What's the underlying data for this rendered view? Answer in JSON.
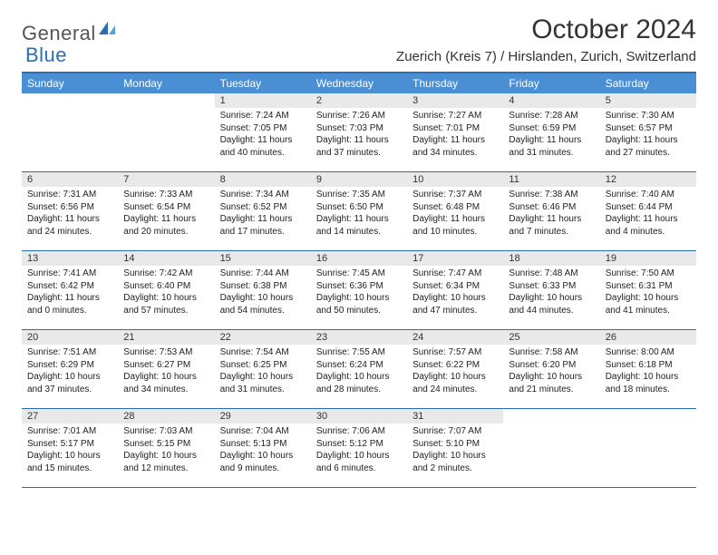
{
  "logo": {
    "text1": "General",
    "text2": "Blue"
  },
  "title": "October 2024",
  "location": "Zuerich (Kreis 7) / Hirslanden, Zurich, Switzerland",
  "colors": {
    "header_bg": "#4a8fd4",
    "border": "#2a6fb5",
    "daynum_bg": "#e9e9e9",
    "text": "#333333"
  },
  "dayNames": [
    "Sunday",
    "Monday",
    "Tuesday",
    "Wednesday",
    "Thursday",
    "Friday",
    "Saturday"
  ],
  "weeks": [
    [
      {
        "n": "",
        "sr": "",
        "ss": "",
        "dl": ""
      },
      {
        "n": "",
        "sr": "",
        "ss": "",
        "dl": ""
      },
      {
        "n": "1",
        "sr": "Sunrise: 7:24 AM",
        "ss": "Sunset: 7:05 PM",
        "dl": "Daylight: 11 hours and 40 minutes."
      },
      {
        "n": "2",
        "sr": "Sunrise: 7:26 AM",
        "ss": "Sunset: 7:03 PM",
        "dl": "Daylight: 11 hours and 37 minutes."
      },
      {
        "n": "3",
        "sr": "Sunrise: 7:27 AM",
        "ss": "Sunset: 7:01 PM",
        "dl": "Daylight: 11 hours and 34 minutes."
      },
      {
        "n": "4",
        "sr": "Sunrise: 7:28 AM",
        "ss": "Sunset: 6:59 PM",
        "dl": "Daylight: 11 hours and 31 minutes."
      },
      {
        "n": "5",
        "sr": "Sunrise: 7:30 AM",
        "ss": "Sunset: 6:57 PM",
        "dl": "Daylight: 11 hours and 27 minutes."
      }
    ],
    [
      {
        "n": "6",
        "sr": "Sunrise: 7:31 AM",
        "ss": "Sunset: 6:56 PM",
        "dl": "Daylight: 11 hours and 24 minutes."
      },
      {
        "n": "7",
        "sr": "Sunrise: 7:33 AM",
        "ss": "Sunset: 6:54 PM",
        "dl": "Daylight: 11 hours and 20 minutes."
      },
      {
        "n": "8",
        "sr": "Sunrise: 7:34 AM",
        "ss": "Sunset: 6:52 PM",
        "dl": "Daylight: 11 hours and 17 minutes."
      },
      {
        "n": "9",
        "sr": "Sunrise: 7:35 AM",
        "ss": "Sunset: 6:50 PM",
        "dl": "Daylight: 11 hours and 14 minutes."
      },
      {
        "n": "10",
        "sr": "Sunrise: 7:37 AM",
        "ss": "Sunset: 6:48 PM",
        "dl": "Daylight: 11 hours and 10 minutes."
      },
      {
        "n": "11",
        "sr": "Sunrise: 7:38 AM",
        "ss": "Sunset: 6:46 PM",
        "dl": "Daylight: 11 hours and 7 minutes."
      },
      {
        "n": "12",
        "sr": "Sunrise: 7:40 AM",
        "ss": "Sunset: 6:44 PM",
        "dl": "Daylight: 11 hours and 4 minutes."
      }
    ],
    [
      {
        "n": "13",
        "sr": "Sunrise: 7:41 AM",
        "ss": "Sunset: 6:42 PM",
        "dl": "Daylight: 11 hours and 0 minutes."
      },
      {
        "n": "14",
        "sr": "Sunrise: 7:42 AM",
        "ss": "Sunset: 6:40 PM",
        "dl": "Daylight: 10 hours and 57 minutes."
      },
      {
        "n": "15",
        "sr": "Sunrise: 7:44 AM",
        "ss": "Sunset: 6:38 PM",
        "dl": "Daylight: 10 hours and 54 minutes."
      },
      {
        "n": "16",
        "sr": "Sunrise: 7:45 AM",
        "ss": "Sunset: 6:36 PM",
        "dl": "Daylight: 10 hours and 50 minutes."
      },
      {
        "n": "17",
        "sr": "Sunrise: 7:47 AM",
        "ss": "Sunset: 6:34 PM",
        "dl": "Daylight: 10 hours and 47 minutes."
      },
      {
        "n": "18",
        "sr": "Sunrise: 7:48 AM",
        "ss": "Sunset: 6:33 PM",
        "dl": "Daylight: 10 hours and 44 minutes."
      },
      {
        "n": "19",
        "sr": "Sunrise: 7:50 AM",
        "ss": "Sunset: 6:31 PM",
        "dl": "Daylight: 10 hours and 41 minutes."
      }
    ],
    [
      {
        "n": "20",
        "sr": "Sunrise: 7:51 AM",
        "ss": "Sunset: 6:29 PM",
        "dl": "Daylight: 10 hours and 37 minutes."
      },
      {
        "n": "21",
        "sr": "Sunrise: 7:53 AM",
        "ss": "Sunset: 6:27 PM",
        "dl": "Daylight: 10 hours and 34 minutes."
      },
      {
        "n": "22",
        "sr": "Sunrise: 7:54 AM",
        "ss": "Sunset: 6:25 PM",
        "dl": "Daylight: 10 hours and 31 minutes."
      },
      {
        "n": "23",
        "sr": "Sunrise: 7:55 AM",
        "ss": "Sunset: 6:24 PM",
        "dl": "Daylight: 10 hours and 28 minutes."
      },
      {
        "n": "24",
        "sr": "Sunrise: 7:57 AM",
        "ss": "Sunset: 6:22 PM",
        "dl": "Daylight: 10 hours and 24 minutes."
      },
      {
        "n": "25",
        "sr": "Sunrise: 7:58 AM",
        "ss": "Sunset: 6:20 PM",
        "dl": "Daylight: 10 hours and 21 minutes."
      },
      {
        "n": "26",
        "sr": "Sunrise: 8:00 AM",
        "ss": "Sunset: 6:18 PM",
        "dl": "Daylight: 10 hours and 18 minutes."
      }
    ],
    [
      {
        "n": "27",
        "sr": "Sunrise: 7:01 AM",
        "ss": "Sunset: 5:17 PM",
        "dl": "Daylight: 10 hours and 15 minutes."
      },
      {
        "n": "28",
        "sr": "Sunrise: 7:03 AM",
        "ss": "Sunset: 5:15 PM",
        "dl": "Daylight: 10 hours and 12 minutes."
      },
      {
        "n": "29",
        "sr": "Sunrise: 7:04 AM",
        "ss": "Sunset: 5:13 PM",
        "dl": "Daylight: 10 hours and 9 minutes."
      },
      {
        "n": "30",
        "sr": "Sunrise: 7:06 AM",
        "ss": "Sunset: 5:12 PM",
        "dl": "Daylight: 10 hours and 6 minutes."
      },
      {
        "n": "31",
        "sr": "Sunrise: 7:07 AM",
        "ss": "Sunset: 5:10 PM",
        "dl": "Daylight: 10 hours and 2 minutes."
      },
      {
        "n": "",
        "sr": "",
        "ss": "",
        "dl": ""
      },
      {
        "n": "",
        "sr": "",
        "ss": "",
        "dl": ""
      }
    ]
  ]
}
